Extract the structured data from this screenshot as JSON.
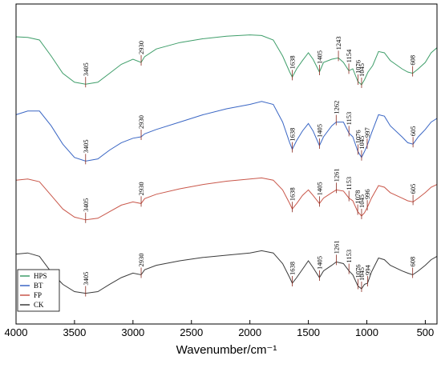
{
  "chart_data": {
    "type": "line",
    "title": "",
    "xlabel": "Wavenumber/cm⁻¹",
    "ylabel": "",
    "xlim": [
      4000,
      400
    ],
    "x_reversed": true,
    "x_ticks": [
      4000,
      3500,
      3000,
      2500,
      2000,
      1500,
      1000,
      500
    ],
    "x_tick_labels": [
      "4000",
      "3500",
      "3000",
      "2500",
      "2000",
      "1500",
      "1000",
      "500"
    ],
    "y_ticks_shown": false,
    "grid": false,
    "legend_position": "bottom-left",
    "series": [
      {
        "name": "HPS",
        "color": "#3f9e6a",
        "points": [
          [
            4000,
            0.05
          ],
          [
            3900,
            0.06
          ],
          [
            3800,
            0.1
          ],
          [
            3700,
            0.35
          ],
          [
            3600,
            0.62
          ],
          [
            3500,
            0.76
          ],
          [
            3405,
            0.79
          ],
          [
            3300,
            0.76
          ],
          [
            3200,
            0.62
          ],
          [
            3100,
            0.48
          ],
          [
            3000,
            0.4
          ],
          [
            2930,
            0.45
          ],
          [
            2900,
            0.36
          ],
          [
            2800,
            0.24
          ],
          [
            2600,
            0.14
          ],
          [
            2400,
            0.08
          ],
          [
            2200,
            0.04
          ],
          [
            2000,
            0.02
          ],
          [
            1900,
            0.03
          ],
          [
            1800,
            0.1
          ],
          [
            1720,
            0.35
          ],
          [
            1660,
            0.6
          ],
          [
            1638,
            0.68
          ],
          [
            1600,
            0.55
          ],
          [
            1550,
            0.42
          ],
          [
            1500,
            0.3
          ],
          [
            1460,
            0.4
          ],
          [
            1405,
            0.6
          ],
          [
            1370,
            0.45
          ],
          [
            1300,
            0.4
          ],
          [
            1243,
            0.38
          ],
          [
            1200,
            0.45
          ],
          [
            1154,
            0.58
          ],
          [
            1120,
            0.55
          ],
          [
            1076,
            0.75
          ],
          [
            1045,
            0.8
          ],
          [
            1020,
            0.72
          ],
          [
            990,
            0.6
          ],
          [
            950,
            0.5
          ],
          [
            900,
            0.28
          ],
          [
            850,
            0.3
          ],
          [
            800,
            0.42
          ],
          [
            700,
            0.55
          ],
          [
            650,
            0.6
          ],
          [
            608,
            0.62
          ],
          [
            560,
            0.55
          ],
          [
            500,
            0.45
          ],
          [
            450,
            0.3
          ],
          [
            400,
            0.22
          ]
        ]
      },
      {
        "name": "BT",
        "color": "#3a66c4",
        "points": [
          [
            4000,
            0.2
          ],
          [
            3900,
            0.15
          ],
          [
            3800,
            0.15
          ],
          [
            3700,
            0.35
          ],
          [
            3600,
            0.6
          ],
          [
            3500,
            0.78
          ],
          [
            3405,
            0.83
          ],
          [
            3300,
            0.8
          ],
          [
            3200,
            0.68
          ],
          [
            3100,
            0.58
          ],
          [
            3000,
            0.52
          ],
          [
            2930,
            0.5
          ],
          [
            2900,
            0.46
          ],
          [
            2800,
            0.4
          ],
          [
            2600,
            0.3
          ],
          [
            2400,
            0.2
          ],
          [
            2200,
            0.12
          ],
          [
            2000,
            0.06
          ],
          [
            1900,
            0.02
          ],
          [
            1800,
            0.06
          ],
          [
            1720,
            0.3
          ],
          [
            1660,
            0.58
          ],
          [
            1638,
            0.67
          ],
          [
            1600,
            0.55
          ],
          [
            1550,
            0.42
          ],
          [
            1500,
            0.32
          ],
          [
            1460,
            0.42
          ],
          [
            1405,
            0.62
          ],
          [
            1370,
            0.5
          ],
          [
            1300,
            0.35
          ],
          [
            1262,
            0.3
          ],
          [
            1200,
            0.3
          ],
          [
            1153,
            0.45
          ],
          [
            1120,
            0.5
          ],
          [
            1076,
            0.7
          ],
          [
            1045,
            0.78
          ],
          [
            1020,
            0.7
          ],
          [
            997,
            0.62
          ],
          [
            960,
            0.45
          ],
          [
            900,
            0.2
          ],
          [
            850,
            0.22
          ],
          [
            800,
            0.35
          ],
          [
            700,
            0.5
          ],
          [
            650,
            0.58
          ],
          [
            605,
            0.6
          ],
          [
            560,
            0.5
          ],
          [
            500,
            0.4
          ],
          [
            450,
            0.3
          ],
          [
            400,
            0.25
          ]
        ]
      },
      {
        "name": "FP",
        "color": "#c9574a",
        "points": [
          [
            4000,
            0.12
          ],
          [
            3900,
            0.1
          ],
          [
            3800,
            0.15
          ],
          [
            3700,
            0.4
          ],
          [
            3600,
            0.65
          ],
          [
            3500,
            0.8
          ],
          [
            3405,
            0.85
          ],
          [
            3300,
            0.82
          ],
          [
            3200,
            0.7
          ],
          [
            3100,
            0.58
          ],
          [
            3000,
            0.52
          ],
          [
            2930,
            0.55
          ],
          [
            2900,
            0.46
          ],
          [
            2800,
            0.38
          ],
          [
            2600,
            0.28
          ],
          [
            2400,
            0.2
          ],
          [
            2200,
            0.14
          ],
          [
            2000,
            0.1
          ],
          [
            1900,
            0.08
          ],
          [
            1800,
            0.12
          ],
          [
            1720,
            0.3
          ],
          [
            1660,
            0.55
          ],
          [
            1638,
            0.65
          ],
          [
            1600,
            0.55
          ],
          [
            1550,
            0.4
          ],
          [
            1500,
            0.3
          ],
          [
            1460,
            0.4
          ],
          [
            1405,
            0.55
          ],
          [
            1370,
            0.45
          ],
          [
            1300,
            0.35
          ],
          [
            1261,
            0.3
          ],
          [
            1200,
            0.32
          ],
          [
            1153,
            0.45
          ],
          [
            1120,
            0.5
          ],
          [
            1078,
            0.7
          ],
          [
            1045,
            0.78
          ],
          [
            1020,
            0.72
          ],
          [
            996,
            0.62
          ],
          [
            960,
            0.45
          ],
          [
            900,
            0.22
          ],
          [
            850,
            0.25
          ],
          [
            800,
            0.35
          ],
          [
            700,
            0.45
          ],
          [
            650,
            0.5
          ],
          [
            605,
            0.52
          ],
          [
            560,
            0.45
          ],
          [
            500,
            0.35
          ],
          [
            450,
            0.25
          ],
          [
            400,
            0.2
          ]
        ]
      },
      {
        "name": "CK",
        "color": "#3a3a3a",
        "points": [
          [
            4000,
            0.18
          ],
          [
            3900,
            0.16
          ],
          [
            3800,
            0.22
          ],
          [
            3700,
            0.5
          ],
          [
            3600,
            0.72
          ],
          [
            3500,
            0.85
          ],
          [
            3405,
            0.88
          ],
          [
            3300,
            0.85
          ],
          [
            3200,
            0.72
          ],
          [
            3100,
            0.6
          ],
          [
            3000,
            0.52
          ],
          [
            2930,
            0.55
          ],
          [
            2900,
            0.46
          ],
          [
            2800,
            0.38
          ],
          [
            2600,
            0.3
          ],
          [
            2400,
            0.24
          ],
          [
            2200,
            0.2
          ],
          [
            2000,
            0.16
          ],
          [
            1900,
            0.12
          ],
          [
            1800,
            0.16
          ],
          [
            1720,
            0.35
          ],
          [
            1660,
            0.6
          ],
          [
            1638,
            0.7
          ],
          [
            1600,
            0.6
          ],
          [
            1550,
            0.45
          ],
          [
            1500,
            0.3
          ],
          [
            1460,
            0.42
          ],
          [
            1405,
            0.6
          ],
          [
            1370,
            0.48
          ],
          [
            1300,
            0.38
          ],
          [
            1261,
            0.32
          ],
          [
            1200,
            0.35
          ],
          [
            1153,
            0.48
          ],
          [
            1120,
            0.55
          ],
          [
            1076,
            0.75
          ],
          [
            1045,
            0.8
          ],
          [
            1020,
            0.72
          ],
          [
            994,
            0.7
          ],
          [
            960,
            0.5
          ],
          [
            900,
            0.25
          ],
          [
            850,
            0.28
          ],
          [
            800,
            0.38
          ],
          [
            700,
            0.48
          ],
          [
            650,
            0.52
          ],
          [
            608,
            0.55
          ],
          [
            560,
            0.48
          ],
          [
            500,
            0.38
          ],
          [
            450,
            0.28
          ],
          [
            400,
            0.22
          ]
        ]
      }
    ],
    "peak_labels": [
      {
        "series": "HPS",
        "x": 3405,
        "text": "3405"
      },
      {
        "series": "HPS",
        "x": 2930,
        "text": "2930"
      },
      {
        "series": "HPS",
        "x": 1638,
        "text": "1638"
      },
      {
        "series": "HPS",
        "x": 1405,
        "text": "1405"
      },
      {
        "series": "HPS",
        "x": 1243,
        "text": "1243"
      },
      {
        "series": "HPS",
        "x": 1154,
        "text": "1154"
      },
      {
        "series": "HPS",
        "x": 1076,
        "text": "1076"
      },
      {
        "series": "HPS",
        "x": 1045,
        "text": "1045"
      },
      {
        "series": "HPS",
        "x": 608,
        "text": "608"
      },
      {
        "series": "BT",
        "x": 3405,
        "text": "3405"
      },
      {
        "series": "BT",
        "x": 2930,
        "text": "2930"
      },
      {
        "series": "BT",
        "x": 1638,
        "text": "1638"
      },
      {
        "series": "BT",
        "x": 1405,
        "text": "1405"
      },
      {
        "series": "BT",
        "x": 1262,
        "text": "1262"
      },
      {
        "series": "BT",
        "x": 1153,
        "text": "1153"
      },
      {
        "series": "BT",
        "x": 1076,
        "text": "1076"
      },
      {
        "series": "BT",
        "x": 1045,
        "text": "1045"
      },
      {
        "series": "BT",
        "x": 997,
        "text": "997"
      },
      {
        "series": "BT",
        "x": 605,
        "text": "605"
      },
      {
        "series": "FP",
        "x": 3405,
        "text": "3405"
      },
      {
        "series": "FP",
        "x": 2930,
        "text": "2930"
      },
      {
        "series": "FP",
        "x": 1638,
        "text": "1638"
      },
      {
        "series": "FP",
        "x": 1405,
        "text": "1405"
      },
      {
        "series": "FP",
        "x": 1261,
        "text": "1261"
      },
      {
        "series": "FP",
        "x": 1153,
        "text": "1153"
      },
      {
        "series": "FP",
        "x": 1078,
        "text": "1078"
      },
      {
        "series": "FP",
        "x": 1045,
        "text": "1045"
      },
      {
        "series": "FP",
        "x": 996,
        "text": "996"
      },
      {
        "series": "FP",
        "x": 605,
        "text": "605"
      },
      {
        "series": "CK",
        "x": 3405,
        "text": "3405"
      },
      {
        "series": "CK",
        "x": 2930,
        "text": "2930"
      },
      {
        "series": "CK",
        "x": 1638,
        "text": "1638"
      },
      {
        "series": "CK",
        "x": 1405,
        "text": "1405"
      },
      {
        "series": "CK",
        "x": 1261,
        "text": "1261"
      },
      {
        "series": "CK",
        "x": 1153,
        "text": "1153"
      },
      {
        "series": "CK",
        "x": 1076,
        "text": "1076"
      },
      {
        "series": "CK",
        "x": 1045,
        "text": "1045"
      },
      {
        "series": "CK",
        "x": 994,
        "text": "994"
      },
      {
        "series": "CK",
        "x": 608,
        "text": "608"
      }
    ]
  }
}
